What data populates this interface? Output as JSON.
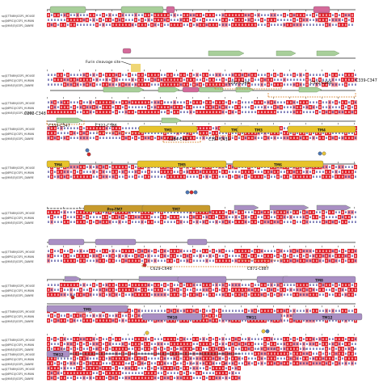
{
  "sequence_names": [
    "sp|Q7TN89|ICSP1_MOUSE",
    "sp|Q6PIS1|ICSP1_HUMAN",
    "sp|Q9N5J3|ICSP1_DANRE"
  ],
  "annotations": {
    "furin": "Furin cleavage site",
    "disulfides": [
      "C292-C348",
      "C322-C366",
      "C339-C347",
      "C292-C348",
      "C339-C347",
      "C322-C386",
      "C384-C417",
      "C397-C410",
      "C629-C648",
      "C871-C887"
    ],
    "tm_labels": [
      "TM1",
      "TM2",
      "TM3",
      "TM4",
      "TM4",
      "TM5",
      "TM6",
      "Pro-TM7",
      "TM7",
      "TM8",
      "TM9",
      "TM10",
      "TM11",
      "TM12",
      "TM12"
    ]
  },
  "colors": {
    "conserved": "#e0202a",
    "similar": "#f08a92",
    "helix_green": "#a8cf9a",
    "helix_pink": "#d46a9a",
    "tm_yellow": "#e7c32a",
    "tm_brown": "#c79a2c",
    "tm_purple": "#a98fc4",
    "disulfide": "#d9822b",
    "marker_blue": "#4c78b8",
    "marker_red": "#d62b2b",
    "marker_yellow": "#e8c53a"
  }
}
